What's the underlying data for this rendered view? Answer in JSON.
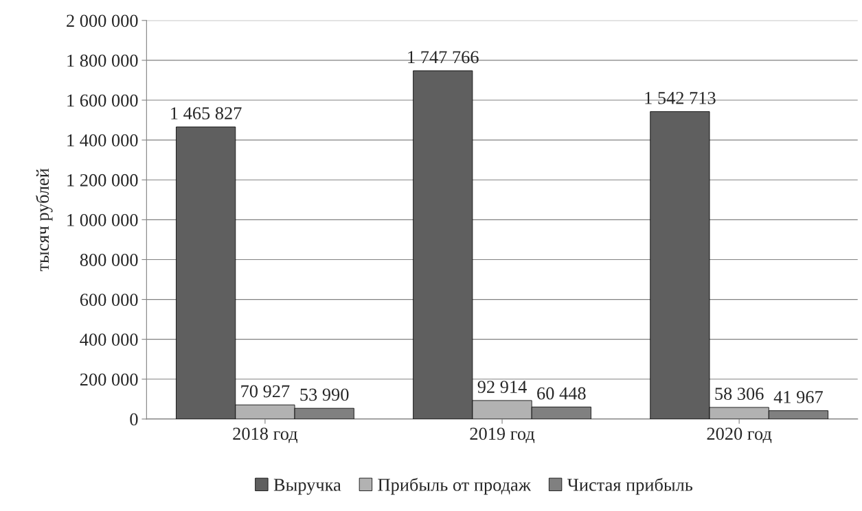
{
  "chart_data": {
    "type": "bar",
    "ylabel": "тысяч рублей",
    "categories": [
      "2018 год",
      "2019 год",
      "2020 год"
    ],
    "series": [
      {
        "name": "Выручка",
        "color": "#5f5f5f",
        "values": [
          1465827,
          1747766,
          1542713
        ],
        "value_labels": [
          "1 465 827",
          "1 747 766",
          "1 542 713"
        ]
      },
      {
        "name": "Прибыль от продаж",
        "color": "#b2b2b2",
        "values": [
          70927,
          92914,
          58306
        ],
        "value_labels": [
          "70 927",
          "92 914",
          "58 306"
        ]
      },
      {
        "name": "Чистая прибыль",
        "color": "#808080",
        "values": [
          53990,
          60448,
          41967
        ],
        "value_labels": [
          "53 990",
          "60 448",
          "41 967"
        ]
      }
    ],
    "ylim": [
      0,
      2000000
    ],
    "yticks": [
      {
        "value": 0,
        "label": "0"
      },
      {
        "value": 200000,
        "label": "200 000"
      },
      {
        "value": 400000,
        "label": "400 000"
      },
      {
        "value": 600000,
        "label": "600 000"
      },
      {
        "value": 800000,
        "label": "800 000"
      },
      {
        "value": 1000000,
        "label": "1 000 000"
      },
      {
        "value": 1200000,
        "label": "1 200 000"
      },
      {
        "value": 1400000,
        "label": "1 400 000"
      },
      {
        "value": 1600000,
        "label": "1 600 000"
      },
      {
        "value": 1800000,
        "label": "1 800 000"
      },
      {
        "value": 2000000,
        "label": "2 000 000"
      }
    ],
    "grid": "y",
    "legend": "bottom"
  }
}
